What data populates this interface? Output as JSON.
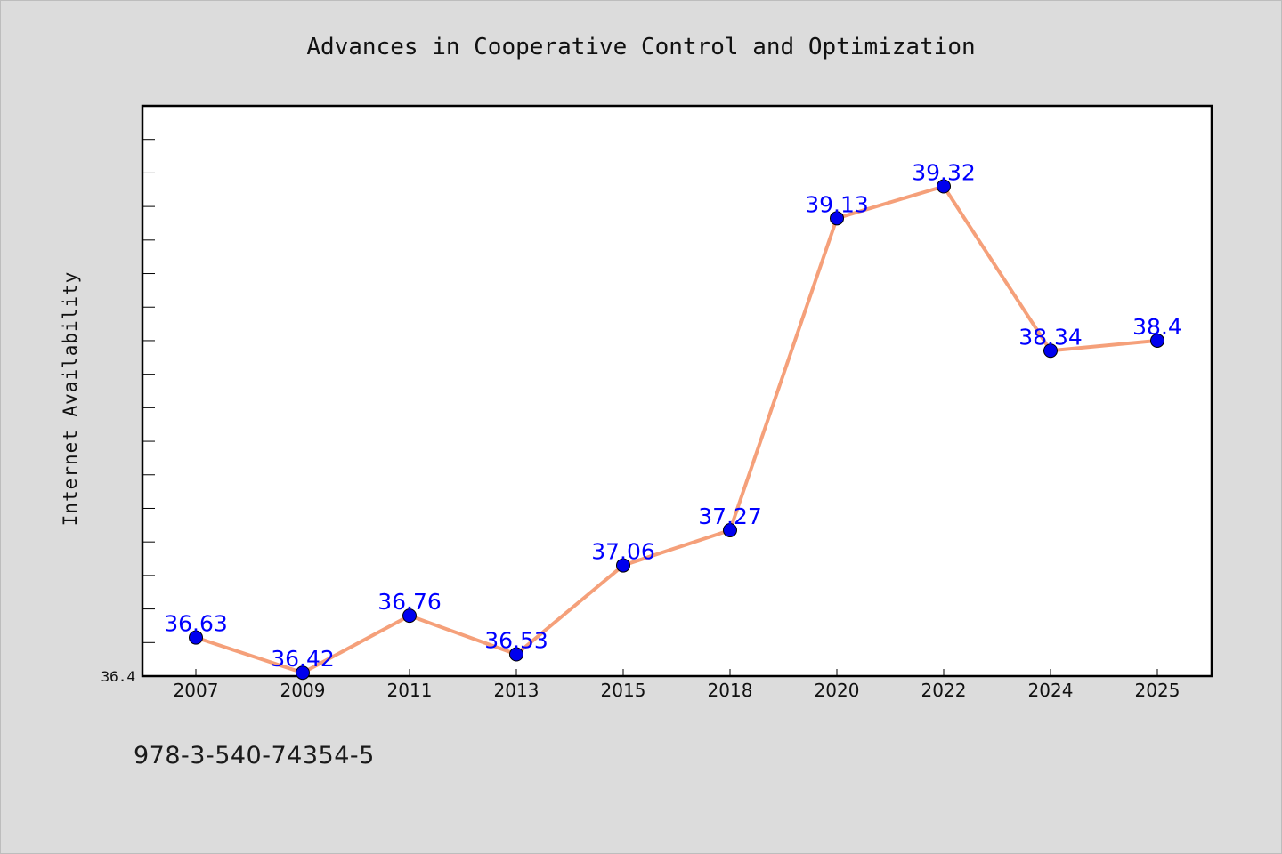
{
  "footer": {
    "code": "978-3-540-74354-5"
  },
  "chart_data": {
    "type": "line",
    "title": "Advances in Cooperative Control and Optimization",
    "xlabel": "",
    "ylabel": "Internet Availability",
    "categories": [
      "2007",
      "2009",
      "2011",
      "2013",
      "2015",
      "2018",
      "2020",
      "2022",
      "2024",
      "2025"
    ],
    "series": [
      {
        "values": [
          36.63,
          36.42,
          36.76,
          36.53,
          37.06,
          37.27,
          39.13,
          39.32,
          38.34,
          38.4
        ],
        "labels": [
          "36.63",
          "36.42",
          "36.76",
          "36.53",
          "37.06",
          "37.27",
          "39.13",
          "39.32",
          "38.34",
          "38.4"
        ],
        "line_color": "#f5a07a",
        "marker_color": "#0000ee",
        "label_color": "#0000ff"
      }
    ],
    "ylim": [
      36.4,
      39.8
    ],
    "y_tick_labels": [
      "36.4"
    ],
    "grid": false,
    "legend": "none"
  }
}
